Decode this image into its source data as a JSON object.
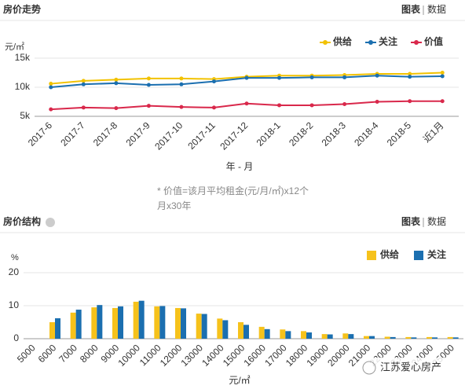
{
  "chart_data": [
    {
      "type": "line",
      "title": "房价走势",
      "tabs": [
        "图表",
        "数据"
      ],
      "ylabel": "元/㎡",
      "xlabel": "年 - 月",
      "note": "* 价值=该月平均租金(元/月/㎡)x12个月x30年",
      "categories": [
        "2017-6",
        "2017-7",
        "2017-8",
        "2017-9",
        "2017-10",
        "2017-11",
        "2017-12",
        "2018-1",
        "2018-2",
        "2018-3",
        "2018-4",
        "2018-5",
        "近1月"
      ],
      "series": [
        {
          "name": "供给",
          "color": "#f2c200",
          "values": [
            10600,
            11100,
            11300,
            11500,
            11500,
            11400,
            11800,
            12000,
            12000,
            12100,
            12300,
            12300,
            12500
          ]
        },
        {
          "name": "关注",
          "color": "#1b6fb0",
          "values": [
            10000,
            10500,
            10700,
            10400,
            10500,
            11000,
            11600,
            11600,
            11700,
            11700,
            12000,
            11800,
            11900
          ]
        },
        {
          "name": "价值",
          "color": "#d9284b",
          "values": [
            6200,
            6500,
            6400,
            6800,
            6600,
            6500,
            7200,
            6900,
            6900,
            7100,
            7500,
            7600,
            7600
          ]
        }
      ],
      "ylim": [
        5000,
        15000
      ],
      "yticks": [
        {
          "value": 5000,
          "label": "5k"
        },
        {
          "value": 10000,
          "label": "10k"
        },
        {
          "value": 15000,
          "label": "15k"
        }
      ],
      "grid": true,
      "legend": "top-right"
    },
    {
      "type": "bar",
      "title": "房价结构",
      "tabs": [
        "图表",
        "数据"
      ],
      "ylabel": "%",
      "xlabel": "元/㎡",
      "watermark": "江苏爱心房产",
      "categories": [
        "5000",
        "6000",
        "7000",
        "8000",
        "9000",
        "10000",
        "11000",
        "12000",
        "13000",
        "14000",
        "15000",
        "16000",
        "17000",
        "18000",
        "19000",
        "20000",
        "21000",
        "22000",
        "23000",
        "24000",
        "25000"
      ],
      "series": [
        {
          "name": "供给",
          "color": "#f6c21b",
          "values": [
            0,
            5.0,
            7.9,
            9.5,
            9.3,
            11.2,
            9.8,
            9.3,
            7.6,
            6.1,
            5.0,
            3.6,
            2.8,
            2.3,
            1.4,
            1.6,
            0.8,
            0.6,
            0.5,
            0.5,
            0.5
          ]
        },
        {
          "name": "关注",
          "color": "#1b6fb0",
          "values": [
            0,
            6.2,
            8.8,
            10.2,
            9.8,
            11.5,
            9.9,
            9.2,
            7.5,
            5.6,
            4.2,
            2.9,
            2.3,
            1.9,
            1.3,
            1.4,
            0.8,
            0.5,
            0.4,
            0.4,
            0.4
          ]
        }
      ],
      "ylim": [
        0,
        20
      ],
      "yticks": [
        0,
        10,
        20
      ],
      "grid": true,
      "legend": "top-right"
    }
  ]
}
